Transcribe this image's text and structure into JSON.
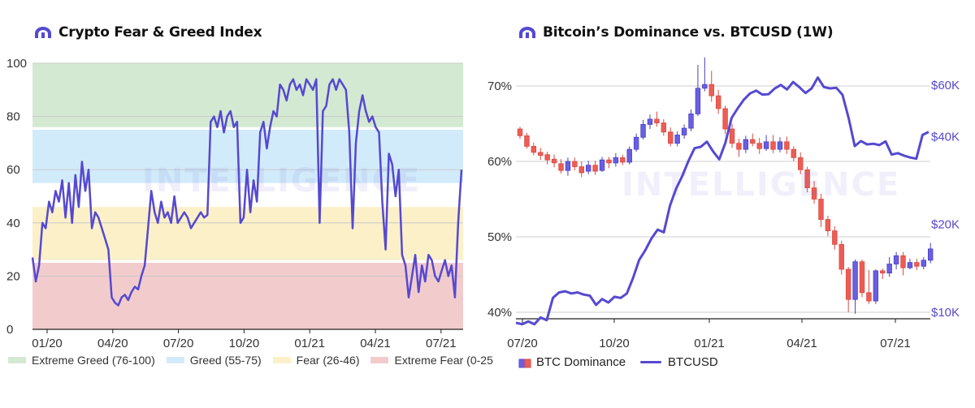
{
  "watermark": "INTELLIGENCE",
  "colors": {
    "line": "#5549d0",
    "up": "#6a5fe0",
    "down": "#ee5d54",
    "greed_ext": "#d4e9d2",
    "greed": "#d2ebfa",
    "fear": "#fbf0c8",
    "fear_ext": "#f2cccc"
  },
  "chart_data": [
    {
      "type": "line",
      "title": "Crypto Fear & Greed Index",
      "ylim": [
        0,
        100
      ],
      "yticks": [
        "0",
        "20",
        "40",
        "60",
        "80",
        "100"
      ],
      "xticks": [
        "01/20",
        "04/20",
        "07/20",
        "10/20",
        "01/21",
        "04/21",
        "07/21"
      ],
      "bands": [
        {
          "label": "Extreme Greed (76-100)",
          "from": 76,
          "to": 100
        },
        {
          "label": "Greed (55-75)",
          "from": 55,
          "to": 75
        },
        {
          "label": "Fear (26-46)",
          "from": 26,
          "to": 46
        },
        {
          "label": "Extreme Fear (0-25",
          "from": 0,
          "to": 25
        }
      ],
      "series": [
        {
          "values": [
            27,
            18,
            24,
            40,
            38,
            48,
            44,
            52,
            48,
            56,
            42,
            55,
            40,
            58,
            46,
            63,
            52,
            60,
            38,
            44,
            42,
            38,
            34,
            30,
            12,
            10,
            9,
            12,
            13,
            11,
            14,
            16,
            15,
            20,
            24,
            38,
            52,
            44,
            40,
            48,
            42,
            44,
            40,
            50,
            40,
            42,
            44,
            42,
            38,
            40,
            42,
            44,
            42,
            43,
            78,
            80,
            76,
            82,
            74,
            80,
            82,
            76,
            78,
            40,
            42,
            60,
            44,
            56,
            48,
            74,
            78,
            68,
            76,
            82,
            80,
            92,
            90,
            86,
            92,
            94,
            90,
            92,
            88,
            94,
            92,
            90,
            94,
            40,
            82,
            84,
            92,
            94,
            90,
            94,
            92,
            90,
            74,
            38,
            70,
            82,
            88,
            82,
            78,
            80,
            76,
            74,
            48,
            30,
            66,
            62,
            50,
            60,
            28,
            24,
            12,
            20,
            28,
            14,
            24,
            18,
            28,
            26,
            20,
            18,
            22,
            26,
            20,
            24,
            12,
            40,
            60
          ]
        }
      ]
    },
    {
      "type": "candlestick+line",
      "title": "Bitcoin’s Dominance vs. BTCUSD (1W)",
      "left_axis": {
        "ylim": [
          39,
          73
        ],
        "ticks": [
          "40%",
          "50%",
          "60%",
          "70%"
        ]
      },
      "right_axis": {
        "ylim": [
          8,
          68
        ],
        "ticks": [
          "$10K",
          "$20K",
          "$40K",
          "$60K"
        ]
      },
      "xticks": [
        "07/20",
        "10/20",
        "01/21",
        "04/21",
        "07/21"
      ],
      "legend": [
        "BTC Dominance",
        "BTCUSD"
      ],
      "candles": [
        [
          64.3,
          63.4,
          64.6,
          63.0
        ],
        [
          63.4,
          62.0,
          63.8,
          61.7
        ],
        [
          62.0,
          61.2,
          62.5,
          60.8
        ],
        [
          61.2,
          60.8,
          61.8,
          60.2
        ],
        [
          60.9,
          60.2,
          61.3,
          59.6
        ],
        [
          60.3,
          59.8,
          60.9,
          59.2
        ],
        [
          59.7,
          58.8,
          60.3,
          58.4
        ],
        [
          58.8,
          60.0,
          60.5,
          58.1
        ],
        [
          60.0,
          59.3,
          60.5,
          58.8
        ],
        [
          59.3,
          58.5,
          60.0,
          57.9
        ],
        [
          58.7,
          59.5,
          60.1,
          58.3
        ],
        [
          59.5,
          58.7,
          60.1,
          58.2
        ],
        [
          58.8,
          60.2,
          60.6,
          58.6
        ],
        [
          60.2,
          59.8,
          60.6,
          59.1
        ],
        [
          59.8,
          60.5,
          61.1,
          59.3
        ],
        [
          60.5,
          59.9,
          60.9,
          59.5
        ],
        [
          59.9,
          61.6,
          62.0,
          59.6
        ],
        [
          61.6,
          63.2,
          63.7,
          61.3
        ],
        [
          63.2,
          64.9,
          65.5,
          62.9
        ],
        [
          64.9,
          65.6,
          66.2,
          64.3
        ],
        [
          65.6,
          65.1,
          66.6,
          64.6
        ],
        [
          65.1,
          63.9,
          65.6,
          63.4
        ],
        [
          63.9,
          62.4,
          64.5,
          62.0
        ],
        [
          62.4,
          63.5,
          64.0,
          62.0
        ],
        [
          63.5,
          64.4,
          64.9,
          63.0
        ],
        [
          64.4,
          66.3,
          66.9,
          64.0
        ],
        [
          66.3,
          69.7,
          72.8,
          66.0
        ],
        [
          69.7,
          70.2,
          73.8,
          69.3
        ],
        [
          70.2,
          68.7,
          72.0,
          67.9
        ],
        [
          68.7,
          67.0,
          69.5,
          66.3
        ],
        [
          67.0,
          64.3,
          67.4,
          63.6
        ],
        [
          64.3,
          62.4,
          65.0,
          61.8
        ],
        [
          62.4,
          61.6,
          63.0,
          60.6
        ],
        [
          61.6,
          62.9,
          63.4,
          61.1
        ],
        [
          62.9,
          62.4,
          63.7,
          62.0
        ],
        [
          62.4,
          61.7,
          63.1,
          61.0
        ],
        [
          61.7,
          62.6,
          63.5,
          61.4
        ],
        [
          62.6,
          61.6,
          63.5,
          61.1
        ],
        [
          61.6,
          62.6,
          63.2,
          61.2
        ],
        [
          62.6,
          61.6,
          63.3,
          61.0
        ],
        [
          61.6,
          60.5,
          62.0,
          60.0
        ],
        [
          60.5,
          58.9,
          61.2,
          58.3
        ],
        [
          58.9,
          56.5,
          59.3,
          55.9
        ],
        [
          56.5,
          55.0,
          57.4,
          54.4
        ],
        [
          55.0,
          52.3,
          55.7,
          51.3
        ],
        [
          52.3,
          50.8,
          52.8,
          50.1
        ],
        [
          50.8,
          49.0,
          51.4,
          48.3
        ],
        [
          49.0,
          45.7,
          49.5,
          45.0
        ],
        [
          45.7,
          41.7,
          46.0,
          40.0
        ],
        [
          41.7,
          46.7,
          47.0,
          39.8
        ],
        [
          46.7,
          42.6,
          47.0,
          42.0
        ],
        [
          42.6,
          41.5,
          45.6,
          41.1
        ],
        [
          41.5,
          45.5,
          45.7,
          41.1
        ],
        [
          45.5,
          45.2,
          45.8,
          44.4
        ],
        [
          45.2,
          46.4,
          47.3,
          44.7
        ],
        [
          46.4,
          47.5,
          48.0,
          45.7
        ],
        [
          47.5,
          45.9,
          48.0,
          44.9
        ],
        [
          45.9,
          46.6,
          47.1,
          45.7
        ],
        [
          46.6,
          46.1,
          47.1,
          45.6
        ],
        [
          46.1,
          46.9,
          47.3,
          45.7
        ],
        [
          46.9,
          48.4,
          49.2,
          46.5
        ]
      ],
      "btcusd": [
        9.2,
        9.1,
        9.3,
        9.1,
        9.6,
        9.4,
        11.2,
        11.7,
        11.8,
        11.6,
        11.7,
        11.5,
        11.4,
        10.6,
        11.1,
        10.8,
        11.3,
        11.2,
        11.6,
        13.1,
        15.1,
        16.3,
        17.9,
        19.2,
        18.8,
        23.2,
        26.5,
        29.3,
        33.0,
        36.5,
        36.9,
        38.4,
        35.6,
        33.4,
        38.1,
        46.3,
        50.0,
        53.5,
        56.2,
        57.5,
        55.7,
        55.9,
        58.4,
        60.1,
        58.0,
        61.5,
        59.1,
        56.4,
        58.5,
        63.7,
        59.1,
        58.5,
        58.8,
        55.6,
        46.4,
        37.1,
        38.6,
        37.6,
        37.8,
        37.4,
        38.5,
        34.7,
        35.1,
        34.4,
        33.9,
        33.6,
        40.5,
        41.5
      ]
    }
  ]
}
